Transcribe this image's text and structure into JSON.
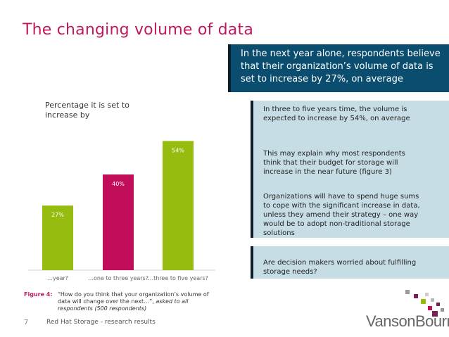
{
  "title": "The changing volume of data",
  "callouts": {
    "main": "In the next year alone, respondents believe that their organization’s volume of data is set to increase by 27%, on average",
    "details": [
      "In three to five years time, the volume is expected to increase by 54%, on average",
      "This may explain why most respondents think that their budget for storage will increase in the near future (figure 3)",
      "Organizations will have to spend huge sums to cope with the significant increase in data, unless they amend their strategy – one way would be to adopt non-traditional storage solutions"
    ],
    "question": "Are decision makers worried about fulfilling storage needs?"
  },
  "figure": {
    "label": "Figure 4:",
    "caption_quote": "“How do you think that your organization’s volume of data will change over the next…”, ",
    "caption_note": "asked to all respondents (500 respondents)"
  },
  "footer": {
    "page_number": "7",
    "text": "Red Hat Storage - research results"
  },
  "logo": {
    "text": "VansonBourne"
  },
  "colors": {
    "accent": "#c0195f",
    "callout_dark": "#0a4d6e",
    "callout_light": "#c7dde6"
  },
  "chart_data": {
    "type": "bar",
    "label": "Percentage it is set to increase by",
    "categories": [
      "…year?",
      "…one to three years?",
      "…three to five years?"
    ],
    "values": [
      27,
      40,
      54
    ],
    "value_labels": [
      "27%",
      "40%",
      "54%"
    ],
    "colors": [
      "#96bc10",
      "#c20d5b",
      "#96bc10"
    ],
    "ylim": [
      0,
      60
    ],
    "grid": false
  }
}
